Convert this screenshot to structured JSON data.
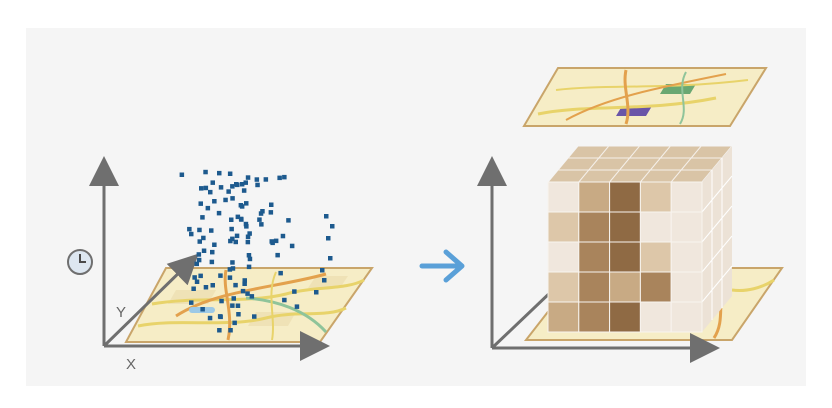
{
  "axes": {
    "y_label": "Y",
    "x_label": "X"
  },
  "icons": {
    "time": "clock-icon",
    "transform": "arrow-right-icon"
  },
  "colors": {
    "background": "#f5f5f5",
    "axis": "#6f6f6f",
    "map_base": "#f6edc6",
    "map_border": "#c9a56a",
    "road_orange": "#e3a14d",
    "road_green": "#8fc49a",
    "road_yellow": "#e8d36a",
    "water": "#9cc9e6",
    "points": "#1d5a8e",
    "arrow": "#5aa0d8",
    "cube_light": "#efe5da",
    "cube_mid": "#c8aa84",
    "cube_dark": "#8f6a44",
    "highlight_green": "#6aa872",
    "highlight_purple": "#6a55a8"
  }
}
